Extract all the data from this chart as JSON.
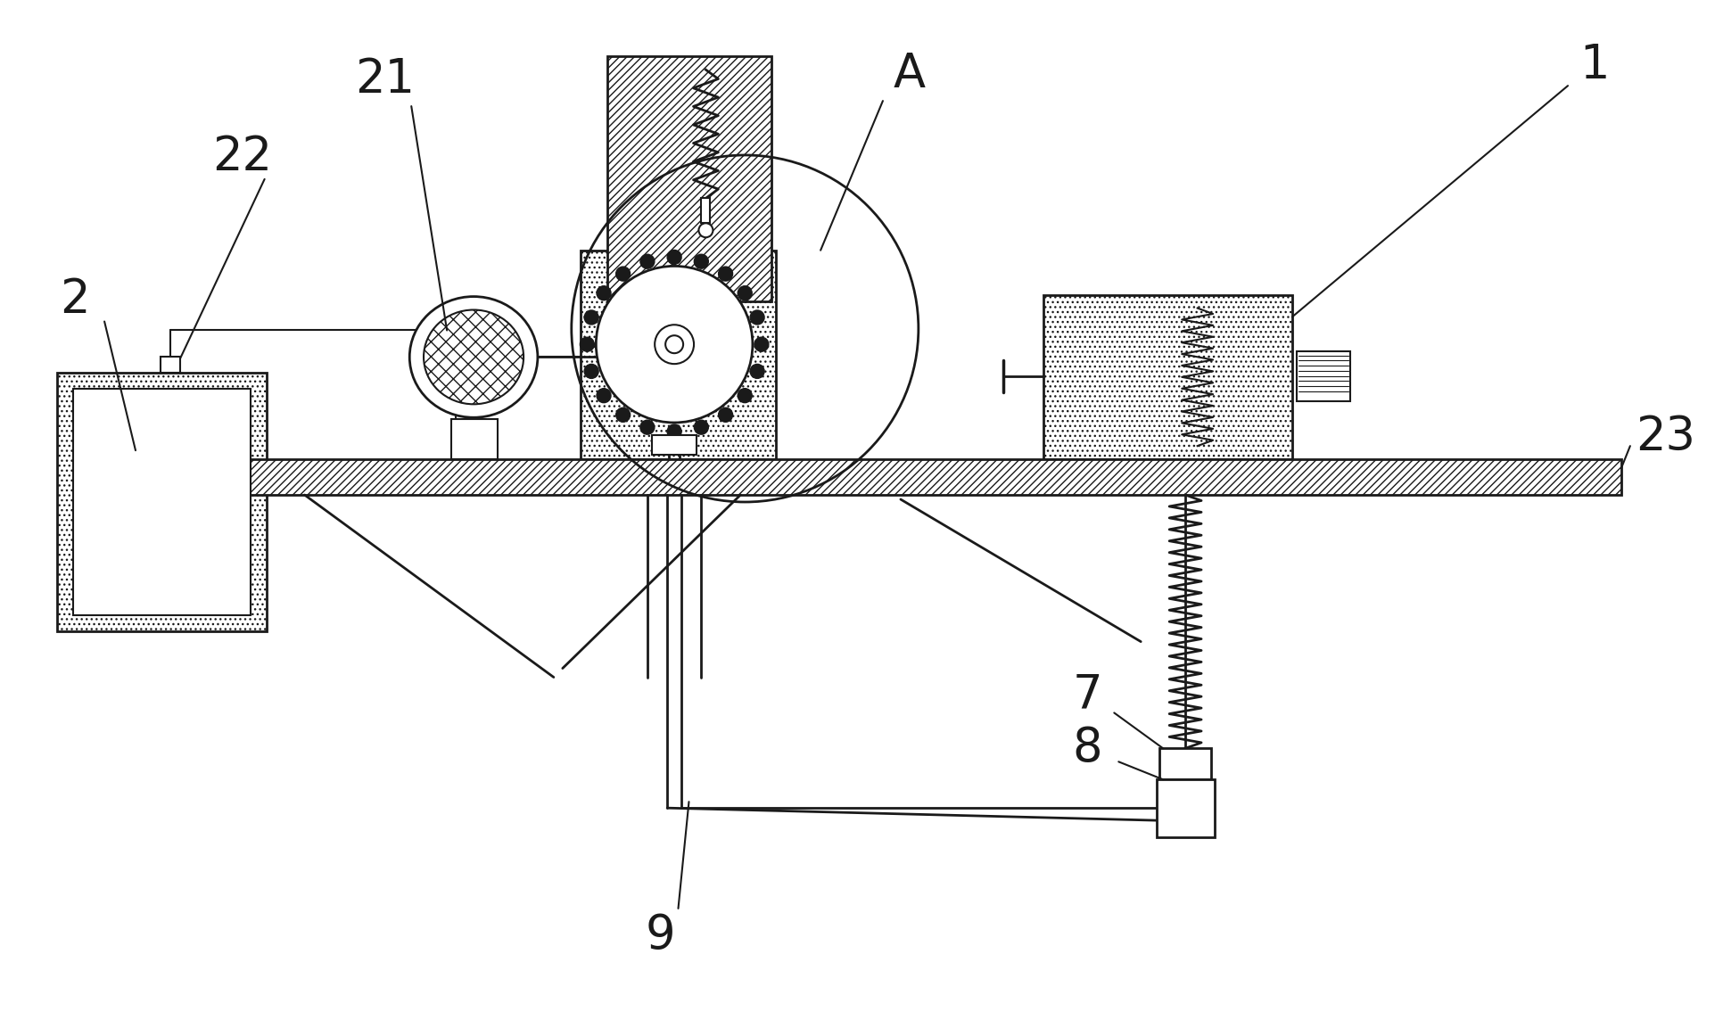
{
  "bg_color": "#ffffff",
  "line_color": "#000000",
  "label_color": "#1a1a1a",
  "figsize": [
    19.32,
    11.35
  ],
  "dpi": 100
}
